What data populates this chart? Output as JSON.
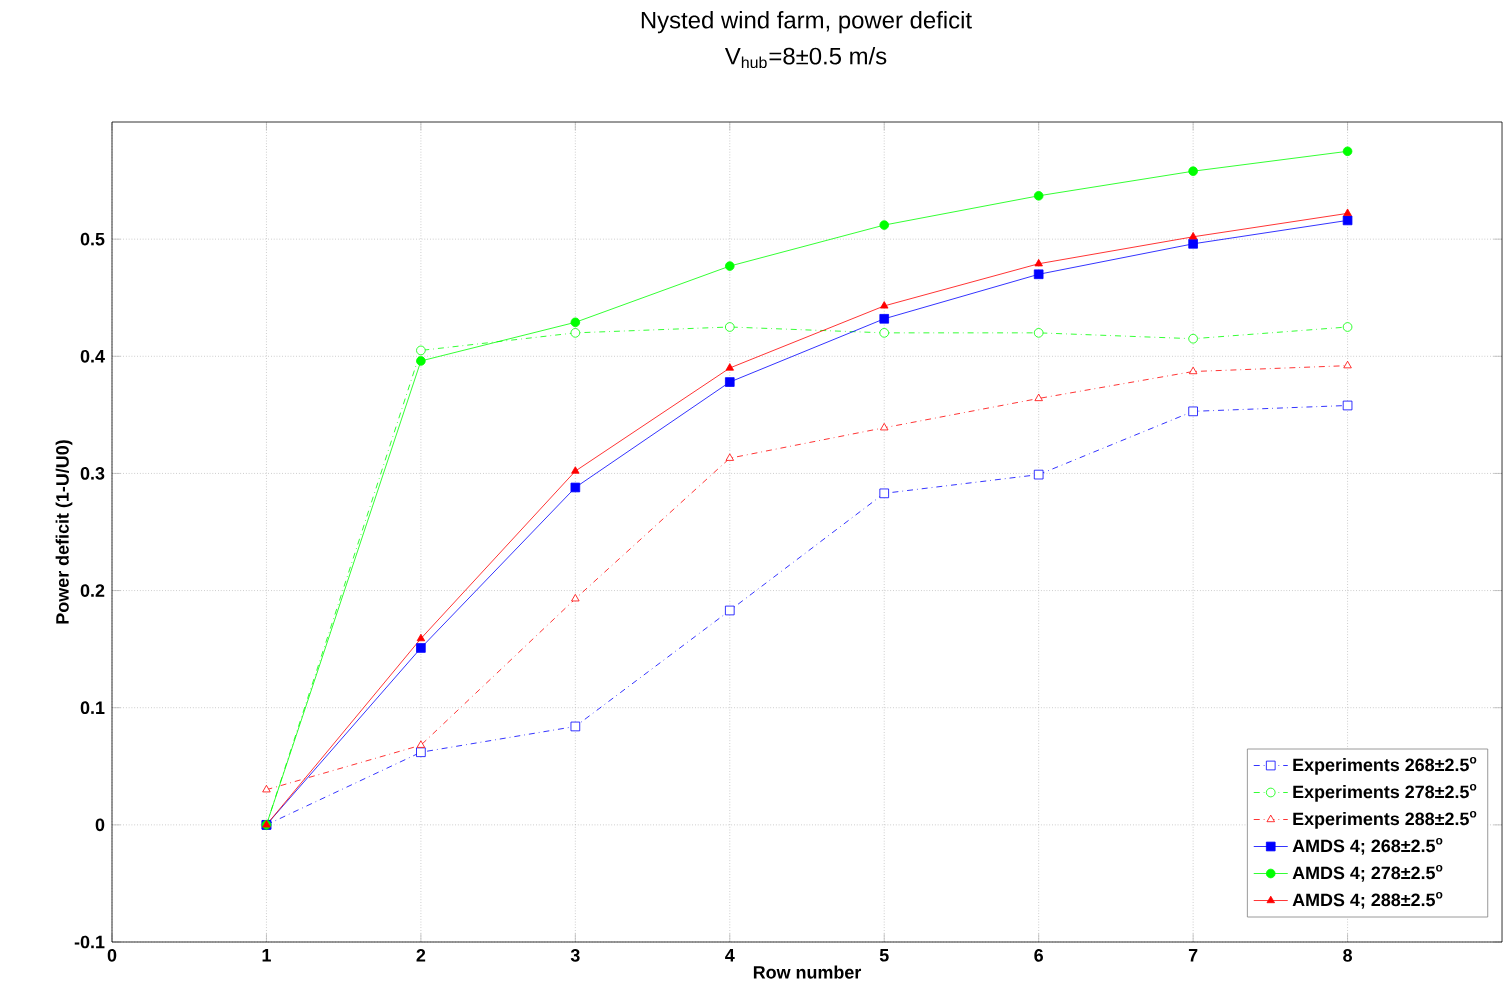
{
  "chart_data": {
    "type": "line",
    "title": "Nysted wind farm, power deficit",
    "subtitle": "V$_{hub}$=8±0.5 m/s",
    "xlabel": "Row number",
    "ylabel": "Power deficit (1-U/U0)",
    "x": [
      1,
      2,
      3,
      4,
      5,
      6,
      7,
      8
    ],
    "xlim": [
      0,
      9
    ],
    "xticks": [
      0,
      1,
      2,
      3,
      4,
      5,
      6,
      7,
      8
    ],
    "ylim": [
      -0.1,
      0.6
    ],
    "yticks": [
      -0.1,
      0,
      0.1,
      0.2,
      0.3,
      0.4,
      0.5
    ],
    "grid": true,
    "legend": "bottom right",
    "series": [
      {
        "name": "Experiments 268±2.5$^{o}$",
        "color": "#0000ff",
        "marker": "square",
        "line_style": "dashed",
        "values": [
          0,
          0.062,
          0.084,
          0.183,
          0.283,
          0.299,
          0.353,
          0.358
        ]
      },
      {
        "name": "Experiments 278±2.5$^{o}$",
        "color": "#00ff00",
        "marker": "circle",
        "line_style": "dashed",
        "values": [
          0,
          0.405,
          0.42,
          0.425,
          0.42,
          0.42,
          0.415,
          0.425
        ]
      },
      {
        "name": "Experiments 288±2.5$^{o}$",
        "color": "#ff0000",
        "marker": "triangle",
        "line_style": "dashed",
        "values": [
          0.03,
          0.068,
          0.193,
          0.313,
          0.339,
          0.364,
          0.387,
          0.392
        ]
      },
      {
        "name": "AMDS 4; 268±2.5$^{o}$",
        "color": "#0000ff",
        "marker": "square",
        "line_style": "solid",
        "values": [
          0,
          0.151,
          0.288,
          0.378,
          0.432,
          0.47,
          0.496,
          0.516
        ]
      },
      {
        "name": "AMDS 4; 278±2.5$^{o}$",
        "color": "#00ff00",
        "marker": "circle",
        "line_style": "solid",
        "values": [
          0,
          0.396,
          0.429,
          0.477,
          0.512,
          0.537,
          0.558,
          0.575
        ]
      },
      {
        "name": "AMDS 4; 288±2.5$^{o}$",
        "color": "#ff0000",
        "marker": "triangle",
        "line_style": "solid",
        "values": [
          0,
          0.159,
          0.302,
          0.39,
          0.443,
          0.479,
          0.502,
          0.522
        ]
      }
    ]
  }
}
